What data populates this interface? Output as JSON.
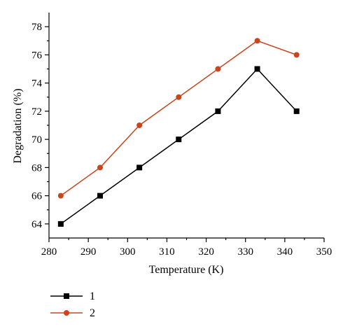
{
  "chart_data": {
    "type": "line",
    "title": "",
    "xlabel": "Temperature (K)",
    "ylabel": "Degradation (%)",
    "xlim": [
      280,
      350
    ],
    "ylim": [
      63,
      79
    ],
    "x_ticks": [
      280,
      290,
      300,
      310,
      320,
      330,
      340,
      350
    ],
    "y_ticks": [
      64,
      66,
      68,
      70,
      72,
      74,
      76,
      78
    ],
    "grid": false,
    "legend_position": "bottom-left, below plot",
    "series": [
      {
        "name": "1",
        "color": "#000000",
        "marker": "square",
        "x": [
          283,
          293,
          303,
          313,
          323,
          333,
          343
        ],
        "y": [
          64,
          66,
          68,
          70,
          72,
          75,
          72
        ]
      },
      {
        "name": "2",
        "color": "#c8461e",
        "marker": "circle",
        "x": [
          283,
          293,
          303,
          313,
          323,
          333,
          343
        ],
        "y": [
          66,
          68,
          71,
          73,
          75,
          77,
          76
        ]
      }
    ]
  }
}
